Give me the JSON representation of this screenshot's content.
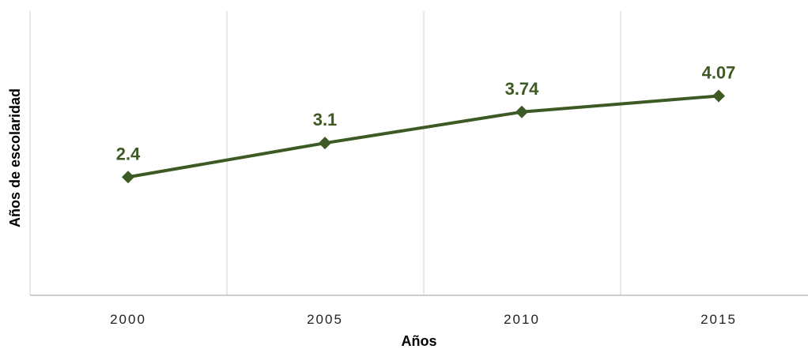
{
  "chart_data": {
    "type": "line",
    "categories": [
      "2000",
      "2005",
      "2010",
      "2015"
    ],
    "series": [
      {
        "values": [
          2.4,
          3.1,
          3.74,
          4.07
        ]
      }
    ],
    "data_labels": [
      "2.4",
      "3.1",
      "3.74",
      "4.07"
    ],
    "title": "",
    "xlabel": "Años",
    "ylabel": "Años de escolaridad",
    "ylim": [
      0,
      4.5
    ],
    "grid": "vertical",
    "legend": "none",
    "colors": {
      "line": "#3d5a25",
      "labels": "#3d5a25",
      "grid": "#d9d9d9",
      "axis": "#bfbfbf"
    }
  }
}
